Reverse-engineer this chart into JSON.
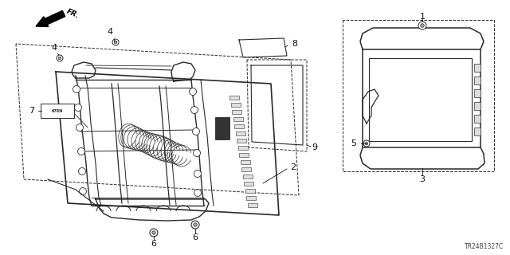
{
  "bg_color": "#ffffff",
  "line_color": "#2a2a2a",
  "diagram_code": "TR24B1327C",
  "fig_w": 6.4,
  "fig_h": 3.2,
  "dpi": 100
}
